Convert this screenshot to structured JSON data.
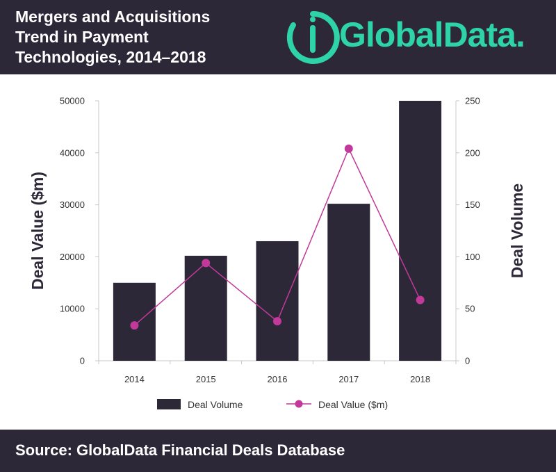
{
  "header": {
    "title_lines": [
      "Mergers and Acquisitions",
      "Trend in Payment",
      "Technologies, 2014–2018"
    ],
    "logo_text": "GlobalData."
  },
  "footer": {
    "source": "Source: GlobalData Financial Deals Database"
  },
  "colors": {
    "background_band": "#2c2838",
    "bar": "#2c2838",
    "line": "#c2399a",
    "logo": "#2ed3a8"
  },
  "chart_data": {
    "type": "bar",
    "title": "Mergers and Acquisitions Trend in Payment Technologies, 2014–2018",
    "categories": [
      "2014",
      "2015",
      "2016",
      "2017",
      "2018"
    ],
    "y_left_label": "Deal Value ($m)",
    "y_right_label": "Deal Volume",
    "y_left_range": [
      0,
      50000
    ],
    "y_left_ticks": [
      "0",
      "10000",
      "20000",
      "30000",
      "40000",
      "50000"
    ],
    "y_right_range": [
      0,
      250
    ],
    "y_right_ticks": [
      "0",
      "50",
      "100",
      "150",
      "200",
      "250"
    ],
    "series": [
      {
        "name": "Deal Volume",
        "type": "bar",
        "axis": "right",
        "values": [
          75,
          101,
          115,
          151,
          250
        ]
      },
      {
        "name": "Deal Value ($m)",
        "type": "line",
        "axis": "left",
        "values": [
          6800,
          18800,
          7600,
          40800,
          11700
        ]
      }
    ],
    "legend": [
      "Deal Volume",
      "Deal Value ($m)"
    ],
    "legend_position": "bottom",
    "grid": false
  }
}
